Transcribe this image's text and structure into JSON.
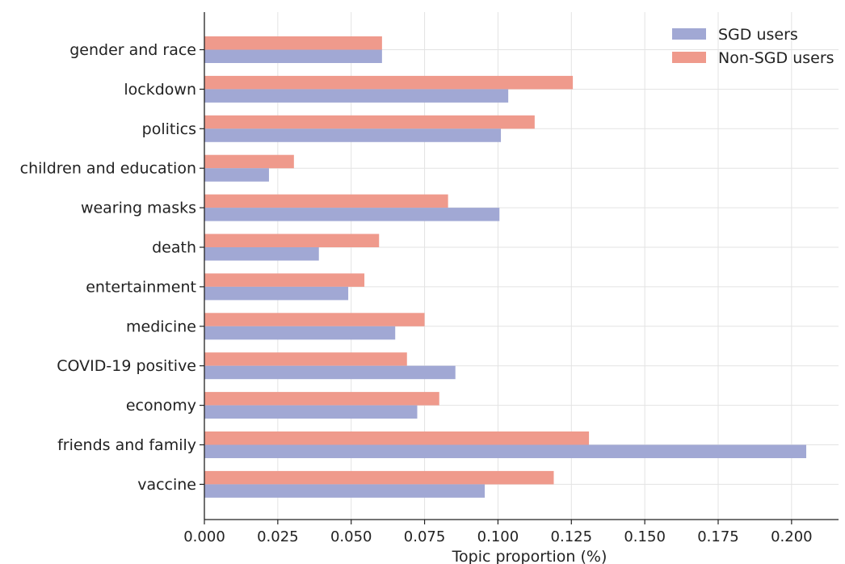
{
  "chart_data": {
    "type": "bar",
    "orientation": "horizontal",
    "title": "",
    "xlabel": "Topic proportion (%)",
    "ylabel": "",
    "xlim": [
      0,
      0.216
    ],
    "xticks": [
      "0.000",
      "0.025",
      "0.050",
      "0.075",
      "0.100",
      "0.125",
      "0.150",
      "0.175",
      "0.200"
    ],
    "grid": true,
    "legend_position": "top-right",
    "categories": [
      "gender and race",
      "lockdown",
      "politics",
      "children and education",
      "wearing masks",
      "death",
      "entertainment",
      "medicine",
      "COVID-19 positive",
      "economy",
      "friends and family",
      "vaccine"
    ],
    "series": [
      {
        "name": "SGD users",
        "color": "#a1a8d4",
        "values": [
          0.0605,
          0.1035,
          0.101,
          0.022,
          0.1005,
          0.039,
          0.049,
          0.065,
          0.0855,
          0.0725,
          0.205,
          0.0955
        ]
      },
      {
        "name": "Non-SGD users",
        "color": "#ef9a8c",
        "values": [
          0.0605,
          0.1255,
          0.1125,
          0.0305,
          0.083,
          0.0595,
          0.0545,
          0.075,
          0.069,
          0.08,
          0.131,
          0.119
        ]
      }
    ]
  }
}
